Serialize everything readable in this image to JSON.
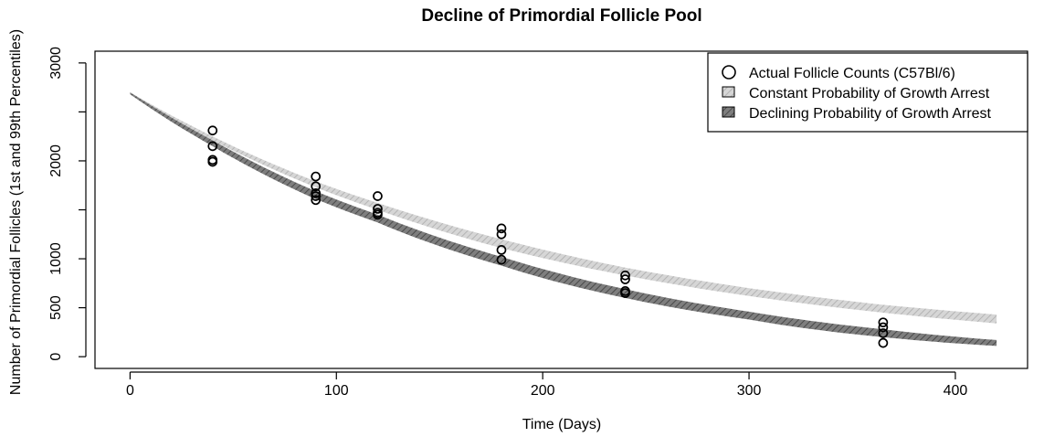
{
  "chart_data": {
    "type": "line",
    "title": "Decline of Primordial Follicle Pool",
    "xlabel": "Time (Days)",
    "ylabel": "Number of Primordial Follicles (1st and 99th Percentiles)",
    "xlim": [
      -17,
      435
    ],
    "ylim": [
      -120,
      3120
    ],
    "xticks": [
      0,
      100,
      200,
      300,
      400
    ],
    "yticks": [
      0,
      500,
      1000,
      2000,
      3000
    ],
    "yticks_minor": [
      0,
      500,
      1000,
      1500,
      2000,
      2500,
      3000
    ],
    "grid": false,
    "legend_position": "top-right",
    "legend": [
      {
        "label": "Actual Follicle Counts (C57Bl/6)",
        "symbol": "circle"
      },
      {
        "label": "Constant Probability of Growth Arrest",
        "symbol": "light-box"
      },
      {
        "label": "Declining Probability of Growth Arrest",
        "symbol": "hatched-box"
      }
    ],
    "observed_points": [
      {
        "x": 40,
        "y": 2310
      },
      {
        "x": 40,
        "y": 2150
      },
      {
        "x": 40,
        "y": 2010
      },
      {
        "x": 40,
        "y": 1990
      },
      {
        "x": 90,
        "y": 1840
      },
      {
        "x": 90,
        "y": 1740
      },
      {
        "x": 90,
        "y": 1670
      },
      {
        "x": 90,
        "y": 1640
      },
      {
        "x": 90,
        "y": 1600
      },
      {
        "x": 120,
        "y": 1640
      },
      {
        "x": 120,
        "y": 1510
      },
      {
        "x": 120,
        "y": 1470
      },
      {
        "x": 120,
        "y": 1450
      },
      {
        "x": 180,
        "y": 1310
      },
      {
        "x": 180,
        "y": 1250
      },
      {
        "x": 180,
        "y": 1090
      },
      {
        "x": 180,
        "y": 990
      },
      {
        "x": 240,
        "y": 830
      },
      {
        "x": 240,
        "y": 790
      },
      {
        "x": 240,
        "y": 670
      },
      {
        "x": 240,
        "y": 650
      },
      {
        "x": 365,
        "y": 350
      },
      {
        "x": 365,
        "y": 300
      },
      {
        "x": 365,
        "y": 240
      },
      {
        "x": 365,
        "y": 140
      }
    ],
    "series": [
      {
        "name": "Constant Probability of Growth Arrest",
        "x": [
          0,
          40,
          90,
          120,
          180,
          240,
          300,
          365,
          420
        ],
        "lower": [
          2700,
          2210,
          1730,
          1500,
          1110,
          830,
          620,
          450,
          340
        ],
        "upper": [
          2700,
          2250,
          1790,
          1570,
          1200,
          910,
          700,
          530,
          430
        ]
      },
      {
        "name": "Declining Probability of Growth Arrest",
        "x": [
          0,
          40,
          90,
          120,
          180,
          240,
          300,
          365,
          420
        ],
        "lower": [
          2680,
          2150,
          1610,
          1370,
          930,
          600,
          380,
          200,
          110
        ],
        "upper": [
          2700,
          2210,
          1690,
          1450,
          1020,
          690,
          460,
          280,
          170
        ]
      }
    ],
    "colors": {
      "constant_band": "#d6d6d6",
      "constant_hatch": "#b4b4b4",
      "declining_band": "#7e7e7e",
      "declining_hatch": "#4a4a4a"
    }
  }
}
